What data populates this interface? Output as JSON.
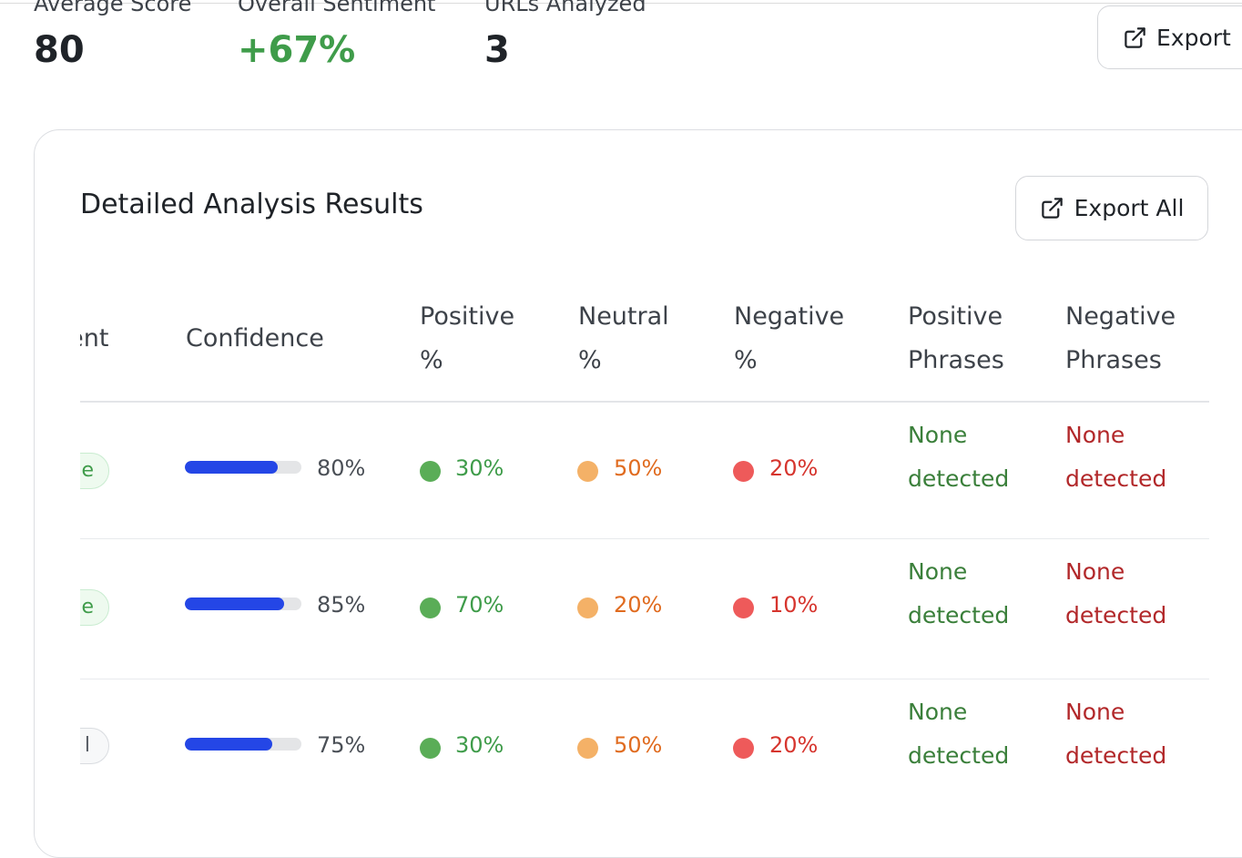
{
  "summary": {
    "average_score": {
      "label": "Average Score",
      "value": "80"
    },
    "overall_sentiment": {
      "label": "Overall Sentiment",
      "value": "+67%"
    },
    "urls_analyzed": {
      "label": "URLs Analyzed",
      "value": "3"
    },
    "export_label": "Export"
  },
  "results": {
    "title": "Detailed Analysis Results",
    "export_all_label": "Export All",
    "columns": {
      "sentiment": "nent",
      "confidence": "Confidence",
      "positive_pct": [
        "Positive",
        "%"
      ],
      "neutral_pct": [
        "Neutral",
        "%"
      ],
      "negative_pct": [
        "Negative",
        "%"
      ],
      "positive_phrases": [
        "Positive",
        "Phrases"
      ],
      "negative_phrases": [
        "Negative",
        "Phrases"
      ]
    },
    "rows": [
      {
        "sentiment_badge": "e",
        "sentiment_kind": "positive",
        "confidence": 0.8,
        "confidence_text": "80%",
        "positive": "30%",
        "neutral": "50%",
        "negative": "20%",
        "positive_phrases": [
          "None",
          "detected"
        ],
        "negative_phrases": [
          "None",
          "detected"
        ]
      },
      {
        "sentiment_badge": "e",
        "sentiment_kind": "positive",
        "confidence": 0.85,
        "confidence_text": "85%",
        "positive": "70%",
        "neutral": "20%",
        "negative": "10%",
        "positive_phrases": [
          "None",
          "detected"
        ],
        "negative_phrases": [
          "None",
          "detected"
        ]
      },
      {
        "sentiment_badge": "l",
        "sentiment_kind": "neutral",
        "confidence": 0.75,
        "confidence_text": "75%",
        "positive": "30%",
        "neutral": "50%",
        "negative": "20%",
        "positive_phrases": [
          "None",
          "detected"
        ],
        "negative_phrases": [
          "None",
          "detected"
        ]
      }
    ]
  },
  "colors": {
    "positive": "#3f9c4a",
    "neutral": "#e06b1f",
    "negative": "#d6352e",
    "confidence_bar": "#2446e6"
  },
  "icons": {
    "export": "external-link-icon"
  }
}
